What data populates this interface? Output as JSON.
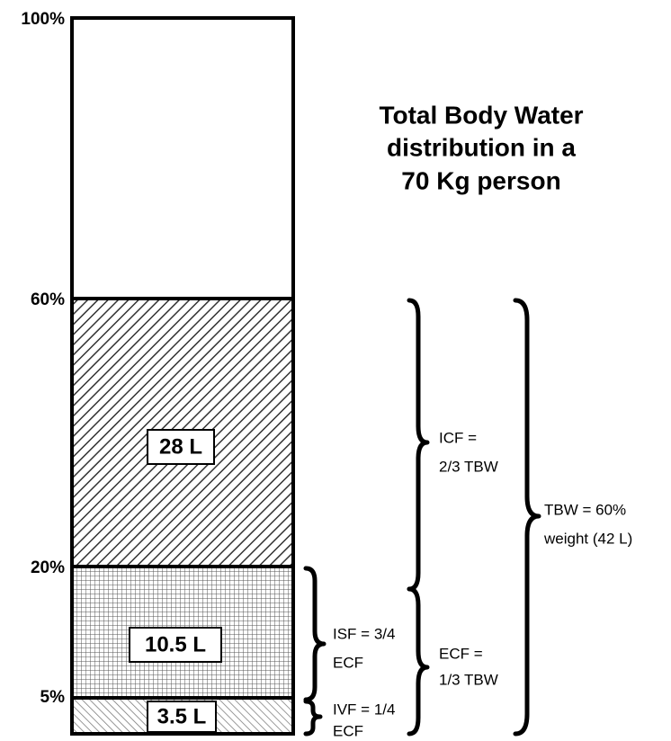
{
  "title": [
    "Total Body Water",
    "distribution in a",
    "70 Kg person"
  ],
  "ticks": [
    "100%",
    "60%",
    "20%",
    "5%"
  ],
  "segments": [
    "28 L",
    "10.5 L",
    "3.5 L"
  ],
  "braces": {
    "icf": [
      "ICF =",
      "2/3 TBW"
    ],
    "ecf": [
      "ECF =",
      "1/3 TBW"
    ],
    "tbw": [
      "TBW = 60%",
      "weight (42 L)"
    ],
    "isf": [
      "ISF = 3/4",
      "ECF"
    ],
    "ivf": [
      "IVF = 1/4",
      "ECF"
    ]
  }
}
